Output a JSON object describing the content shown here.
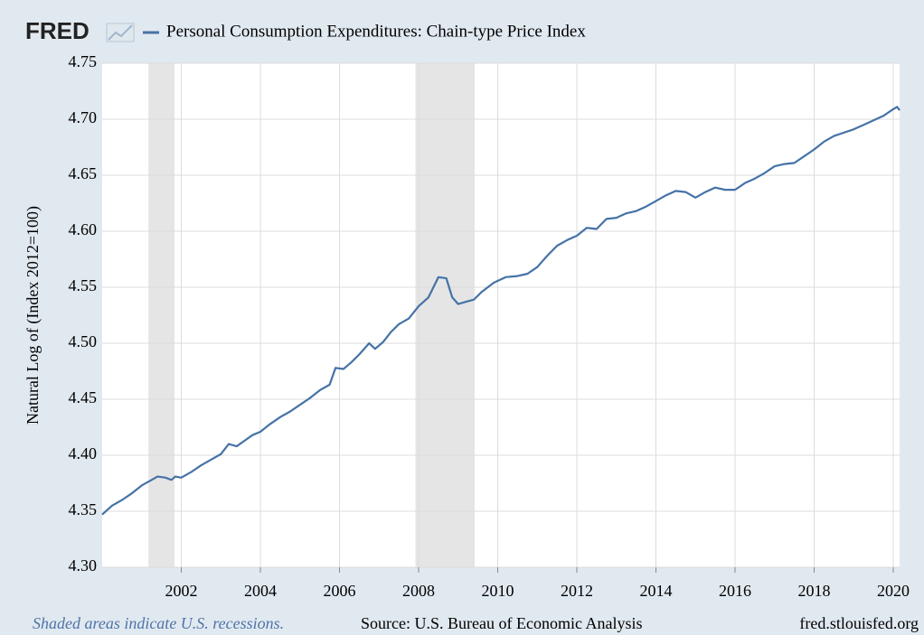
{
  "chart_data": {
    "type": "line",
    "logo": "FRED",
    "ylabel": "Natural Log of (Index 2012=100)",
    "note": "Shaded areas indicate U.S. recessions.",
    "source": "Source: U.S. Bureau of Economic Analysis",
    "site": "fred.stlouisfed.org",
    "x": [
      2000.0,
      2000.25,
      2000.5,
      2000.75,
      2001.0,
      2001.25,
      2001.4,
      2001.6,
      2001.75,
      2001.85,
      2002.0,
      2002.25,
      2002.5,
      2002.75,
      2003.0,
      2003.2,
      2003.4,
      2003.6,
      2003.8,
      2004.0,
      2004.25,
      2004.5,
      2004.75,
      2005.0,
      2005.25,
      2005.5,
      2005.75,
      2005.9,
      2006.1,
      2006.3,
      2006.5,
      2006.75,
      2006.9,
      2007.1,
      2007.3,
      2007.5,
      2007.75,
      2008.0,
      2008.25,
      2008.5,
      2008.7,
      2008.85,
      2009.0,
      2009.2,
      2009.4,
      2009.6,
      2009.9,
      2010.2,
      2010.5,
      2010.75,
      2011.0,
      2011.25,
      2011.5,
      2011.75,
      2012.0,
      2012.25,
      2012.5,
      2012.75,
      2013.0,
      2013.25,
      2013.5,
      2013.75,
      2014.0,
      2014.25,
      2014.5,
      2014.75,
      2015.0,
      2015.25,
      2015.5,
      2015.75,
      2016.0,
      2016.25,
      2016.5,
      2016.75,
      2017.0,
      2017.25,
      2017.5,
      2017.75,
      2018.0,
      2018.25,
      2018.5,
      2018.75,
      2019.0,
      2019.25,
      2019.5,
      2019.75,
      2020.0,
      2020.1,
      2020.16
    ],
    "series": [
      {
        "name": "Personal Consumption Expenditures: Chain-type Price Index",
        "color": "#4572a7",
        "values": [
          4.347,
          4.355,
          4.36,
          4.366,
          4.373,
          4.378,
          4.381,
          4.38,
          4.378,
          4.381,
          4.38,
          4.385,
          4.391,
          4.396,
          4.401,
          4.41,
          4.408,
          4.413,
          4.418,
          4.421,
          4.428,
          4.434,
          4.439,
          4.445,
          4.451,
          4.458,
          4.463,
          4.478,
          4.477,
          4.483,
          4.49,
          4.5,
          4.495,
          4.501,
          4.51,
          4.517,
          4.522,
          4.533,
          4.541,
          4.559,
          4.558,
          4.541,
          4.535,
          4.537,
          4.539,
          4.546,
          4.554,
          4.559,
          4.56,
          4.562,
          4.568,
          4.578,
          4.587,
          4.592,
          4.596,
          4.603,
          4.602,
          4.611,
          4.612,
          4.616,
          4.618,
          4.622,
          4.627,
          4.632,
          4.636,
          4.635,
          4.63,
          4.635,
          4.639,
          4.637,
          4.637,
          4.643,
          4.647,
          4.652,
          4.658,
          4.66,
          4.661,
          4.667,
          4.673,
          4.68,
          4.685,
          4.688,
          4.691,
          4.695,
          4.699,
          4.703,
          4.709,
          4.711,
          4.708
        ]
      }
    ],
    "recessions": [
      [
        2001.17,
        2001.83
      ],
      [
        2007.92,
        2009.42
      ]
    ],
    "xlim": [
      2000.0,
      2020.16
    ],
    "xticks": [
      2002,
      2004,
      2006,
      2008,
      2010,
      2012,
      2014,
      2016,
      2018,
      2020
    ],
    "ylim": [
      4.3,
      4.75
    ],
    "yticks": [
      {
        "value": 4.3,
        "label": "4.30"
      },
      4.35,
      {
        "value": 4.4,
        "label": "4.40"
      },
      4.45,
      {
        "value": 4.5,
        "label": "4.50"
      },
      4.55,
      {
        "value": 4.6,
        "label": "4.60"
      },
      4.65,
      {
        "value": 4.7,
        "label": "4.70"
      },
      4.75
    ],
    "grid": true
  }
}
